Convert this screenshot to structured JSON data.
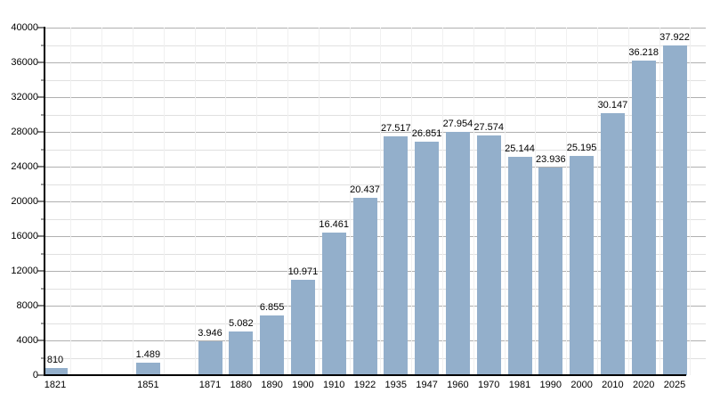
{
  "chart_data": {
    "type": "bar",
    "title": "",
    "xlabel": "",
    "ylabel": "",
    "categories": [
      "1821",
      "1851",
      "1871",
      "1880",
      "1890",
      "1900",
      "1910",
      "1922",
      "1935",
      "1947",
      "1960",
      "1970",
      "1981",
      "1990",
      "2000",
      "2010",
      "2020",
      "2025"
    ],
    "values": [
      810,
      1489,
      3946,
      5082,
      6855,
      10971,
      16461,
      20437,
      27517,
      26851,
      27954,
      27574,
      25144,
      23936,
      25195,
      30147,
      36218,
      37922
    ],
    "value_labels": [
      "810",
      "1.489",
      "3.946",
      "5.082",
      "6.855",
      "10.971",
      "16.461",
      "20.437",
      "27.517",
      "26.851",
      "27.954",
      "27.574",
      "25.144",
      "23.936",
      "25.195",
      "30.147",
      "36.218",
      "37.922"
    ],
    "ylim": [
      0,
      40000
    ],
    "y_major_step": 4000,
    "y_minor_step": 2000,
    "y_tick_labels": [
      "0",
      "4000",
      "8000",
      "12000",
      "16000",
      "20000",
      "24000",
      "28000",
      "32000",
      "36000",
      "40000"
    ],
    "x_slots": [
      0,
      3,
      5,
      6,
      7,
      8,
      9,
      10,
      11,
      12,
      13,
      14,
      15,
      16,
      17,
      18,
      19,
      20
    ],
    "grid": true,
    "legend": "none",
    "bar_color": "#93afcb"
  },
  "colors": {
    "bar": "#93afcb",
    "grid_major": "#b0b0b0",
    "grid_minor": "#e0e0e0",
    "grid_vertical": "#f0f0f0",
    "axis": "#000000",
    "text": "#000000",
    "background": "#ffffff"
  }
}
